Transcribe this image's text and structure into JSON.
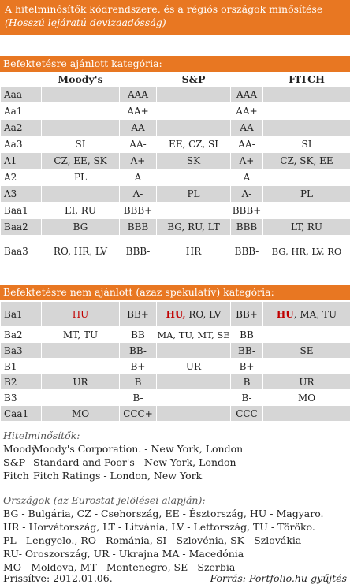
{
  "title": {
    "line1": "A hitelminősítők kódrendszere, és a régiós országok minősítése",
    "line2": "(Hosszú lejáratú devizaadósság)"
  },
  "investment": {
    "header": "Befektetésre ajánlott kategória:",
    "columns": [
      "Moody's",
      "S&P",
      "FITCH"
    ],
    "rows": [
      {
        "m": "Aaa",
        "mc": "",
        "s": "AAA",
        "sc": "",
        "f": "AAA",
        "fc": ""
      },
      {
        "m": "Aa1",
        "mc": "",
        "s": "AA+",
        "sc": "",
        "f": "AA+",
        "fc": ""
      },
      {
        "m": "Aa2",
        "mc": "",
        "s": "AA",
        "sc": "",
        "f": "AA",
        "fc": ""
      },
      {
        "m": "Aa3",
        "mc": "SI",
        "s": "AA-",
        "sc": "EE, CZ, SI",
        "f": "AA-",
        "fc": "SI"
      },
      {
        "m": "A1",
        "mc": "CZ, EE, SK",
        "s": "A+",
        "sc": "SK",
        "f": "A+",
        "fc": "CZ, SK, EE"
      },
      {
        "m": "A2",
        "mc": "PL",
        "s": "A",
        "sc": "",
        "f": "A",
        "fc": ""
      },
      {
        "m": "A3",
        "mc": "",
        "s": "A-",
        "sc": "PL",
        "f": "A-",
        "fc": "PL"
      },
      {
        "m": "Baa1",
        "mc": "LT, RU",
        "s": "BBB+",
        "sc": "",
        "f": "BBB+",
        "fc": ""
      },
      {
        "m": "Baa2",
        "mc": "BG",
        "s": "BBB",
        "sc": "BG, RU, LT",
        "f": "BBB",
        "fc": "LT, RU"
      },
      {
        "m": "Baa3",
        "mc": "RO, HR, LV",
        "s": "BBB-",
        "sc": "HR",
        "f": "BBB-",
        "fc": "BG, HR, LV, RO"
      }
    ]
  },
  "speculative": {
    "header": "Befektetésre nem ajánlott (azaz spekulatív) kategória:",
    "ba1": {
      "m": "Ba1",
      "mc": "HU",
      "s": "BB+",
      "sc_red": "HU,",
      "sc_rest": " RO, LV",
      "f": "BB+",
      "fc_red": "HU",
      "fc_rest": ", MA, TU"
    },
    "rows": [
      {
        "m": "Ba2",
        "mc": "MT, TU",
        "s": "BB",
        "sc": "MA, TU, MT, SE",
        "f": "BB",
        "fc": ""
      },
      {
        "m": "Ba3",
        "mc": "",
        "s": "BB-",
        "sc": "",
        "f": "BB-",
        "fc": "SE"
      },
      {
        "m": "B1",
        "mc": "",
        "s": "B+",
        "sc": "UR",
        "f": "B+",
        "fc": ""
      },
      {
        "m": "B2",
        "mc": "UR",
        "s": "B",
        "sc": "",
        "f": "B",
        "fc": "UR"
      },
      {
        "m": "B3",
        "mc": "",
        "s": "B-",
        "sc": "",
        "f": "B-",
        "fc": "MO"
      },
      {
        "m": "Caa1",
        "mc": "MO",
        "s": "CCC+",
        "sc": "",
        "f": "CCC",
        "fc": ""
      }
    ]
  },
  "raters": {
    "header": "Hitelminősítők:",
    "items": [
      {
        "abbr": "Moody",
        "text": "Moody's Corporation. - New York, London"
      },
      {
        "abbr": "S&P",
        "text": "Standard and Poor's  - New York, London"
      },
      {
        "abbr": "Fitch",
        "text": "Fitch Ratings - London, New York"
      }
    ]
  },
  "countries": {
    "header": "Országok (az Eurostat jelölései alapján):",
    "lines": [
      "BG - Bulgária, CZ - Csehország, EE - Észtország, HU - Magyaro.",
      "HR - Horvátország, LT - Litvánia, LV - Lettország, TU - Töröko.",
      "PL - Lengyelo., RO - Románia, SI - Szlovénia, SK - Szlovákia",
      "RU- Oroszország, UR - Ukrajna MA - Macedónia",
      "MO - Moldova, MT - Montenegro, SE - Szerbia"
    ]
  },
  "footer": {
    "date": "Frissítve: 2012.01.06.",
    "source": "Forrás: Portfolio.hu-gyűjtés"
  }
}
